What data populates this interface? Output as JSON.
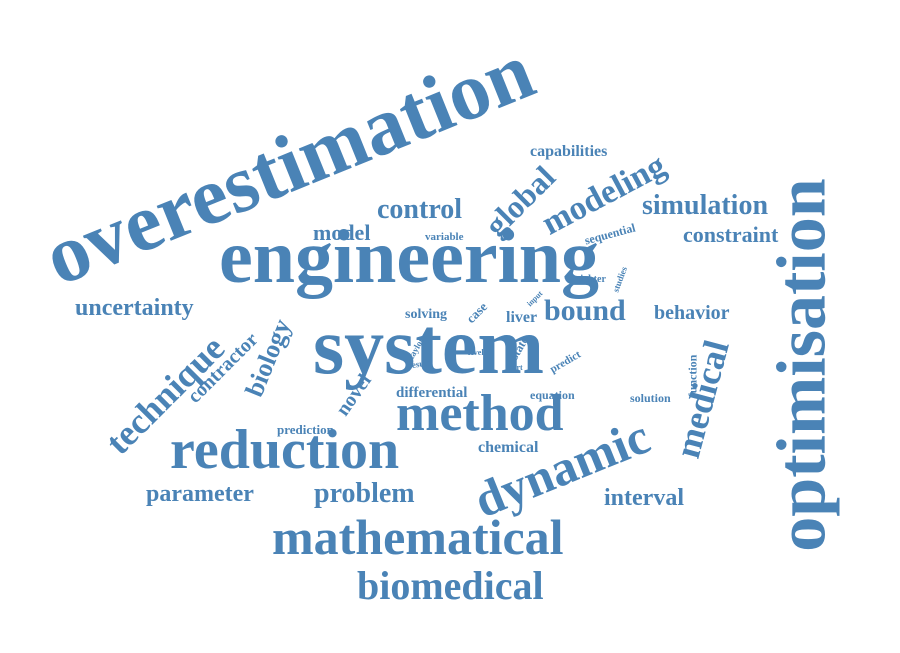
{
  "colors": {
    "text": "#4a83b6",
    "background": "#ffffff"
  },
  "words": {
    "overestimation": "overestimation",
    "optimisation": "optimisation",
    "engineering": "engineering",
    "system": "system",
    "reduction": "reduction",
    "method": "method",
    "dynamic": "dynamic",
    "mathematical": "mathematical",
    "biomedical": "biomedical",
    "medical": "medical",
    "technique": "technique",
    "modeling": "modeling",
    "global": "global",
    "simulation": "simulation",
    "control": "control",
    "constraint": "constraint",
    "model": "model",
    "uncertainty": "uncertainty",
    "bound": "bound",
    "behavior": "behavior",
    "biology": "biology",
    "contractor": "contractor",
    "novel": "novel",
    "parameter": "parameter",
    "problem": "problem",
    "interval": "interval",
    "capabilities": "capabilities",
    "differential": "differential",
    "equation": "equation",
    "prediction": "prediction",
    "chemical": "chemical",
    "solving": "solving",
    "case": "case",
    "liver": "liver",
    "state": "state",
    "predict": "predict",
    "function": "function",
    "solution": "solution",
    "sequential": "sequential",
    "variable": "variable",
    "tighter": "tighter",
    "studies": "studies",
    "input": "input",
    "taylor": "taylor",
    "result": "result",
    "level": "level",
    "part": "part"
  }
}
